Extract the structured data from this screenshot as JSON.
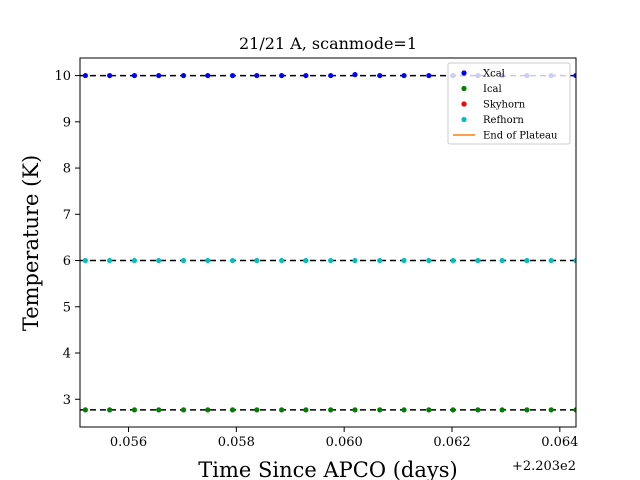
{
  "chart_data": {
    "type": "scatter",
    "title": "21/21 A, scanmode=1",
    "xlabel": "Time Since APCO (days)",
    "ylabel": "Temperature (K)",
    "x_offset_label": "+2.203e2",
    "xlim": [
      0.0551,
      0.0643
    ],
    "ylim": [
      2.4,
      10.38
    ],
    "x_ticks": [
      0.056,
      0.058,
      0.06,
      0.062,
      0.064
    ],
    "x_tick_labels": [
      "0.056",
      "0.058",
      "0.060",
      "0.062",
      "0.064"
    ],
    "y_ticks": [
      3,
      4,
      5,
      6,
      7,
      8,
      9,
      10
    ],
    "y_tick_labels": [
      "3",
      "4",
      "5",
      "6",
      "7",
      "8",
      "9",
      "10"
    ],
    "x": [
      0.0552,
      0.05565,
      0.05611,
      0.05656,
      0.05702,
      0.05747,
      0.05793,
      0.05838,
      0.05884,
      0.05929,
      0.05975,
      0.0602,
      0.06066,
      0.06111,
      0.06157,
      0.06202,
      0.06248,
      0.06293,
      0.06339,
      0.06384,
      0.0643
    ],
    "series": [
      {
        "name": "Xcal",
        "color": "#0000ff",
        "values": [
          10.0,
          10.0,
          10.0,
          10.0,
          10.0,
          10.0,
          10.0,
          10.0,
          10.0,
          10.0,
          10.0,
          10.02,
          10.0,
          10.0,
          10.0,
          10.0,
          10.0,
          10.0,
          10.0,
          10.0,
          10.0
        ]
      },
      {
        "name": "Ical",
        "color": "#008000",
        "values": [
          2.77,
          2.77,
          2.77,
          2.77,
          2.77,
          2.77,
          2.77,
          2.77,
          2.77,
          2.77,
          2.77,
          2.77,
          2.77,
          2.77,
          2.77,
          2.77,
          2.77,
          2.77,
          2.77,
          2.77,
          2.77
        ]
      },
      {
        "name": "Skyhorn",
        "color": "#ff0000",
        "values": []
      },
      {
        "name": "Refhorn",
        "color": "#00bfbf",
        "values": [
          6.0,
          6.0,
          6.0,
          6.0,
          6.0,
          6.0,
          6.0,
          6.0,
          6.0,
          6.0,
          6.0,
          6.0,
          6.0,
          6.0,
          6.0,
          6.0,
          6.0,
          6.0,
          6.0,
          6.0,
          6.0
        ]
      }
    ],
    "reference_lines": [
      {
        "y": 10.0,
        "style": "dashed",
        "color": "#000000"
      },
      {
        "y": 6.0,
        "style": "dashed",
        "color": "#000000"
      },
      {
        "y": 2.77,
        "style": "dashed",
        "color": "#000000"
      }
    ],
    "legend": {
      "placement": "top-right",
      "entries": [
        {
          "label": "Xcal",
          "kind": "marker",
          "color": "#0000ff"
        },
        {
          "label": "Ical",
          "kind": "marker",
          "color": "#008000"
        },
        {
          "label": "Skyhorn",
          "kind": "marker",
          "color": "#ff0000"
        },
        {
          "label": "Refhorn",
          "kind": "marker",
          "color": "#00bfbf"
        },
        {
          "label": "End of Plateau",
          "kind": "line",
          "color": "#ff7f0e"
        }
      ]
    },
    "grid": false
  }
}
